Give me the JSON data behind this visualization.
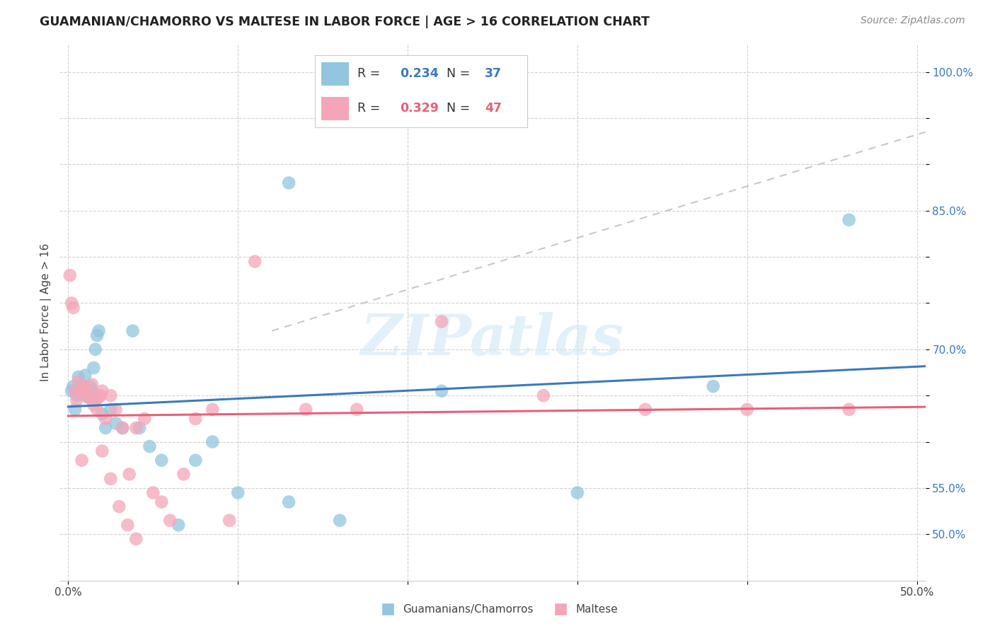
{
  "title": "GUAMANIAN/CHAMORRO VS MALTESE IN LABOR FORCE | AGE > 16 CORRELATION CHART",
  "source": "Source: ZipAtlas.com",
  "ylabel_label": "In Labor Force | Age > 16",
  "xlim": [
    -0.005,
    0.505
  ],
  "ylim": [
    0.45,
    1.03
  ],
  "color_blue": "#92c5de",
  "color_pink": "#f4a6b8",
  "line_blue": "#3a7abf",
  "line_pink": "#e8607a",
  "line_gray_dash": "#bbbbbb",
  "watermark": "ZIPatlas",
  "legend_label1": "Guamanians/Chamorros",
  "legend_label2": "Maltese",
  "blue_x": [
    0.002,
    0.003,
    0.004,
    0.005,
    0.006,
    0.007,
    0.008,
    0.009,
    0.01,
    0.011,
    0.012,
    0.013,
    0.014,
    0.015,
    0.016,
    0.017,
    0.018,
    0.02,
    0.022,
    0.025,
    0.028,
    0.032,
    0.038,
    0.042,
    0.048,
    0.055,
    0.065,
    0.075,
    0.085,
    0.1,
    0.13,
    0.16,
    0.22,
    0.3,
    0.38,
    0.46,
    0.13
  ],
  "blue_y": [
    0.655,
    0.66,
    0.635,
    0.65,
    0.67,
    0.652,
    0.66,
    0.658,
    0.672,
    0.65,
    0.648,
    0.66,
    0.655,
    0.68,
    0.7,
    0.715,
    0.72,
    0.63,
    0.615,
    0.635,
    0.62,
    0.615,
    0.72,
    0.615,
    0.595,
    0.58,
    0.51,
    0.58,
    0.6,
    0.545,
    0.535,
    0.515,
    0.655,
    0.545,
    0.66,
    0.84,
    0.88
  ],
  "pink_x": [
    0.001,
    0.002,
    0.003,
    0.004,
    0.005,
    0.006,
    0.007,
    0.008,
    0.009,
    0.01,
    0.011,
    0.012,
    0.013,
    0.014,
    0.015,
    0.016,
    0.017,
    0.018,
    0.019,
    0.02,
    0.022,
    0.025,
    0.028,
    0.032,
    0.036,
    0.04,
    0.045,
    0.05,
    0.055,
    0.06,
    0.068,
    0.075,
    0.085,
    0.095,
    0.11,
    0.14,
    0.17,
    0.22,
    0.28,
    0.34,
    0.4,
    0.46,
    0.02,
    0.025,
    0.03,
    0.035,
    0.04
  ],
  "pink_y": [
    0.78,
    0.75,
    0.745,
    0.655,
    0.645,
    0.665,
    0.655,
    0.58,
    0.655,
    0.66,
    0.655,
    0.648,
    0.65,
    0.662,
    0.64,
    0.645,
    0.635,
    0.648,
    0.65,
    0.655,
    0.625,
    0.65,
    0.635,
    0.615,
    0.565,
    0.615,
    0.625,
    0.545,
    0.535,
    0.515,
    0.565,
    0.625,
    0.635,
    0.515,
    0.795,
    0.635,
    0.635,
    0.73,
    0.65,
    0.635,
    0.635,
    0.635,
    0.59,
    0.56,
    0.53,
    0.51,
    0.495
  ]
}
